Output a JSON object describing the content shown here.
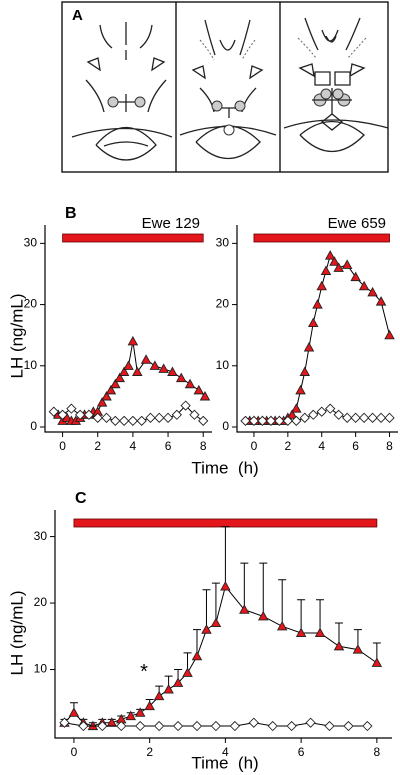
{
  "panel_a": {
    "label": "A"
  },
  "chart_data": [
    {
      "type": "line",
      "panel_label": "B",
      "annotation": "Ewe 129",
      "y_label": "LH (ng/mL)",
      "x_label": "Time  (h)",
      "xlim": [
        -1,
        8.5
      ],
      "ylim": [
        0,
        33
      ],
      "xticks": [
        0,
        2,
        4,
        6,
        8
      ],
      "yticks": [
        0,
        10,
        20,
        30
      ],
      "treatment": [
        0,
        8
      ],
      "treatment_color": "#e3161c",
      "series": [
        {
          "marker": "triangle",
          "color": "#e3161c",
          "x": [
            -0.25,
            0,
            0.25,
            0.5,
            0.75,
            1,
            1.25,
            1.5,
            1.75,
            2,
            2.25,
            2.5,
            2.75,
            3,
            3.25,
            3.5,
            3.75,
            4,
            4.25,
            4.75,
            5.25,
            5.75,
            6.25,
            6.75,
            7.25,
            7.75,
            8.1
          ],
          "values": [
            2,
            1,
            1.5,
            1,
            1,
            1.5,
            2,
            2,
            2.5,
            2.5,
            4,
            5,
            6,
            7,
            8,
            9,
            10,
            14,
            9,
            11,
            10,
            9.5,
            9,
            8,
            7,
            6,
            5
          ]
        },
        {
          "marker": "diamond",
          "color": "#ffffff",
          "x": [
            -0.5,
            0,
            0.5,
            1,
            1.5,
            2,
            2.5,
            3,
            3.5,
            4,
            4.5,
            5,
            5.5,
            6,
            6.5,
            7,
            7.5,
            8
          ],
          "values": [
            2.5,
            2,
            3,
            2,
            2,
            1.5,
            1.5,
            1,
            1,
            1,
            1,
            1.5,
            1.5,
            1.5,
            2,
            3.5,
            2,
            1
          ]
        }
      ]
    },
    {
      "type": "line",
      "annotation": "Ewe 659",
      "xlim": [
        -1,
        8.5
      ],
      "ylim": [
        0,
        33
      ],
      "xticks": [
        0,
        2,
        4,
        6,
        8
      ],
      "yticks": [
        0,
        10,
        20,
        30
      ],
      "treatment": [
        0,
        8
      ],
      "treatment_color": "#e3161c",
      "series": [
        {
          "marker": "triangle",
          "color": "#e3161c",
          "x": [
            -0.25,
            0,
            0.25,
            0.5,
            0.75,
            1,
            1.25,
            1.5,
            1.75,
            2,
            2.25,
            2.5,
            2.75,
            3,
            3.25,
            3.5,
            3.75,
            4,
            4.25,
            4.5,
            4.75,
            5,
            5.5,
            6,
            6.5,
            7,
            7.5,
            8
          ],
          "values": [
            1,
            1,
            1,
            1,
            1,
            1,
            1,
            1,
            1,
            1.5,
            2,
            3,
            6,
            9,
            13,
            17,
            20,
            23,
            25.5,
            28,
            27,
            26,
            26.5,
            24.5,
            23,
            22,
            20.5,
            15
          ]
        },
        {
          "marker": "diamond",
          "color": "#ffffff",
          "x": [
            -0.5,
            0,
            0.5,
            1,
            1.5,
            2,
            2.5,
            3,
            3.5,
            4,
            4.5,
            5,
            5.5,
            6,
            6.5,
            7,
            7.5,
            8
          ],
          "values": [
            1,
            1,
            1,
            1,
            1,
            1,
            1,
            1.5,
            2,
            2.5,
            3,
            2,
            1.5,
            1.5,
            1.5,
            1.5,
            1.5,
            1.5
          ]
        }
      ]
    },
    {
      "type": "line",
      "panel_label": "C",
      "y_label": "LH (ng/mL)",
      "x_label": "Time  (h)",
      "xlim": [
        -0.5,
        8.4
      ],
      "ylim": [
        0,
        34
      ],
      "xticks": [
        0,
        2,
        4,
        6,
        8
      ],
      "yticks": [
        10,
        20,
        30
      ],
      "treatment": [
        0,
        8
      ],
      "treatment_color": "#e3161c",
      "annotations": [
        {
          "text": "*",
          "x": 1.85,
          "y": 9.5
        }
      ],
      "series": [
        {
          "marker": "triangle",
          "color": "#e3161c",
          "x": [
            -0.25,
            0,
            0.25,
            0.5,
            0.75,
            1,
            1.25,
            1.5,
            1.75,
            2,
            2.25,
            2.5,
            2.75,
            3,
            3.25,
            3.5,
            3.75,
            4,
            4.5,
            5,
            5.5,
            6,
            6.5,
            7,
            7.5,
            8
          ],
          "values": [
            2,
            3.5,
            2,
            1.5,
            2,
            2,
            2.5,
            3,
            3.5,
            4.5,
            6,
            7,
            8,
            9.5,
            12,
            16,
            17,
            22.5,
            19,
            18,
            16.5,
            15.5,
            15.5,
            13.5,
            13,
            11
          ],
          "errors": [
            0.5,
            1.5,
            0.5,
            0.5,
            0.5,
            0.5,
            0.5,
            0.5,
            0.5,
            1,
            1.5,
            2,
            2,
            3,
            4,
            6,
            6,
            9,
            7,
            8,
            7,
            5,
            5,
            3.5,
            3,
            3
          ]
        },
        {
          "marker": "diamond",
          "color": "#ffffff",
          "x": [
            -0.25,
            0.25,
            0.75,
            1.25,
            1.75,
            2.25,
            2.75,
            3.25,
            3.75,
            4.25,
            4.75,
            5.25,
            5.75,
            6.25,
            6.75,
            7.25,
            7.75
          ],
          "values": [
            2,
            1.5,
            1.5,
            1.5,
            1.5,
            1.5,
            1.5,
            1.5,
            1.5,
            1.5,
            2,
            1.5,
            1.5,
            2,
            1.5,
            1.5,
            1.5
          ]
        }
      ]
    }
  ]
}
